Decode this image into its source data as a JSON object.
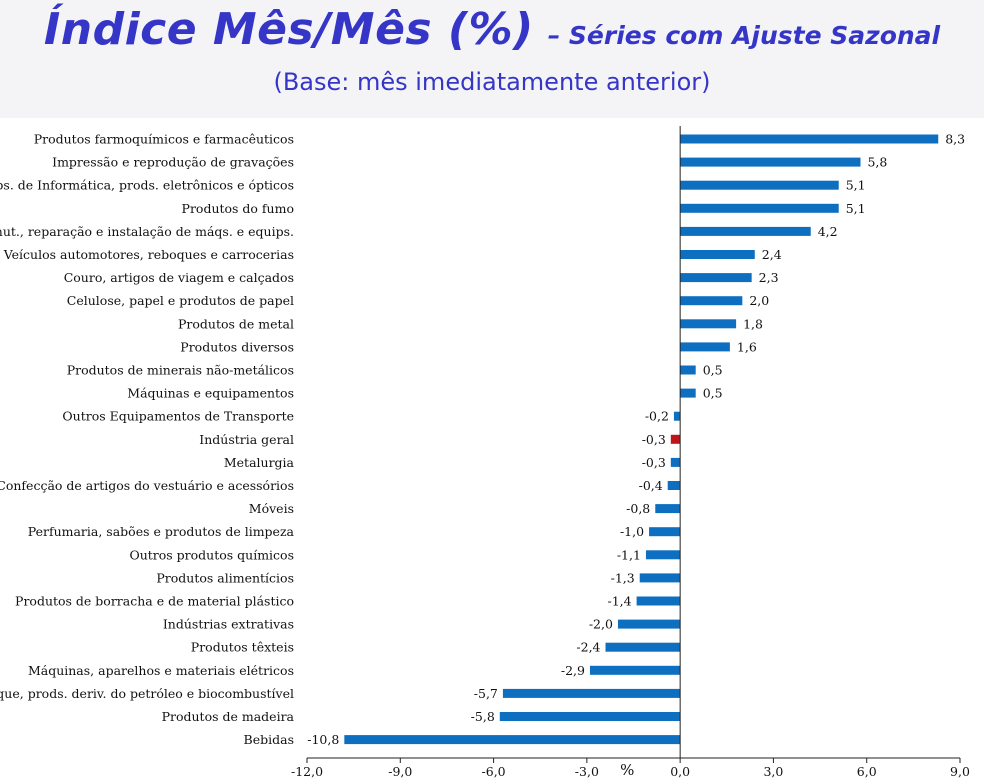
{
  "header": {
    "title": "Índice Mês/Mês (%)",
    "subtitle_series": "– Séries com Ajuste Sazonal",
    "base_note": "(Base: mês imediatamente anterior)"
  },
  "chart_data": {
    "type": "bar",
    "orientation": "horizontal",
    "title": "Índice Mês/Mês (%)",
    "subtitle": "– Séries com Ajuste Sazonal",
    "xlabel": "%",
    "ylabel": "",
    "xlim": [
      -12,
      9
    ],
    "xticks": [
      -12,
      -9,
      -6,
      -3,
      0,
      3,
      6,
      9
    ],
    "xtick_labels": [
      "-12,0",
      "-9,0",
      "-6,0",
      "-3,0",
      "0,0",
      "3,0",
      "6,0",
      "9,0"
    ],
    "grid": false,
    "colors": {
      "default": "#0e6fc1",
      "highlight": "#c0141c"
    },
    "categories": [
      "Produtos farmoquímicos e farmacêuticos",
      "Impressão e reprodução de gravações",
      "Equips. de Informática, prods. eletrônicos e ópticos",
      "Produtos do fumo",
      "Manut., reparação e instalação de máqs. e equips.",
      "Veículos automotores, reboques e carrocerias",
      "Couro, artigos de viagem e calçados",
      "Celulose, papel e produtos de papel",
      "Produtos de metal",
      "Produtos diversos",
      "Produtos de minerais não-metálicos",
      "Máquinas e equipamentos",
      "Outros Equipamentos de Transporte",
      "Indústria geral",
      "Metalurgia",
      "Confecção de artigos do vestuário e acessórios",
      "Móveis",
      "Perfumaria, sabões e produtos de limpeza",
      "Outros produtos químicos",
      "Produtos alimentícios",
      "Produtos de borracha e de material plástico",
      "Indústrias extrativas",
      "Produtos têxteis",
      "Máquinas, aparelhos e materiais elétricos",
      "Coque, prods. deriv. do petróleo e biocombustível",
      "Produtos de madeira",
      "Bebidas"
    ],
    "values": [
      8.3,
      5.8,
      5.1,
      5.1,
      4.2,
      2.4,
      2.3,
      2.0,
      1.8,
      1.6,
      0.5,
      0.5,
      -0.2,
      -0.3,
      -0.3,
      -0.4,
      -0.8,
      -1.0,
      -1.1,
      -1.3,
      -1.4,
      -2.0,
      -2.4,
      -2.9,
      -5.7,
      -5.8,
      -10.8
    ],
    "value_labels": [
      "8,3",
      "5,8",
      "5,1",
      "5,1",
      "4,2",
      "2,4",
      "2,3",
      "2,0",
      "1,8",
      "1,6",
      "0,5",
      "0,5",
      "-0,2",
      "-0,3",
      "-0,3",
      "-0,4",
      "-0,8",
      "-1,0",
      "-1,1",
      "-1,3",
      "-1,4",
      "-2,0",
      "-2,4",
      "-2,9",
      "-5,7",
      "-5,8",
      "-10,8"
    ],
    "highlight_category": "Indústria geral"
  }
}
